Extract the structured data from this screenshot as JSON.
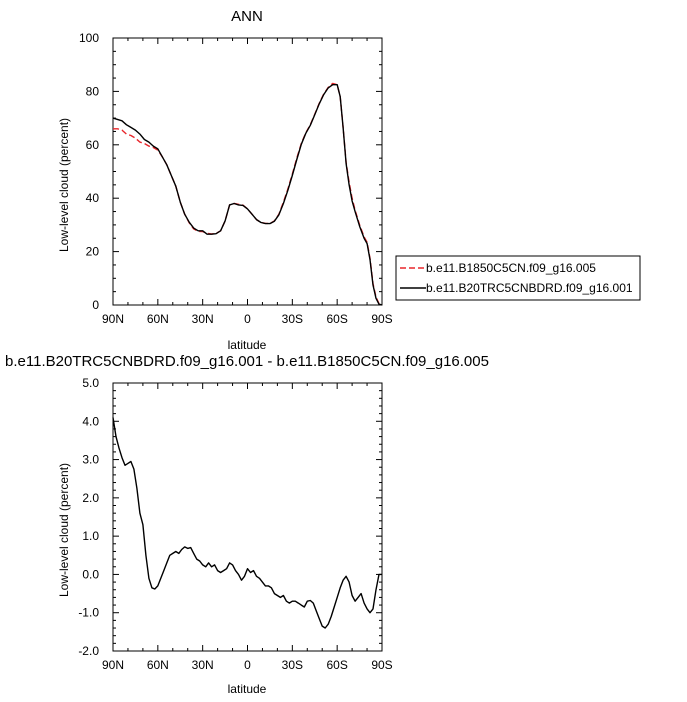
{
  "chart_data": [
    {
      "type": "line",
      "title": "ANN",
      "xlabel": "latitude",
      "ylabel": "Low-level cloud (percent)",
      "xlim": [
        90,
        -90
      ],
      "ylim": [
        0,
        100
      ],
      "x_ticks": [
        90,
        60,
        30,
        0,
        -30,
        -60,
        -90
      ],
      "x_tick_labels": [
        "90N",
        "60N",
        "30N",
        "0",
        "30S",
        "60S",
        "90S"
      ],
      "y_ticks": [
        0,
        20,
        40,
        60,
        80,
        100
      ],
      "y_tick_labels": [
        "0",
        "20",
        "40",
        "60",
        "80",
        "100"
      ],
      "legend_position": "right",
      "series": [
        {
          "name": "b.e11.B1850C5CN.f09_g16.005",
          "color": "#e8262b",
          "dash": "dashed",
          "x": [
            90,
            87,
            84,
            81,
            78,
            75,
            72,
            69,
            66,
            63,
            60,
            57,
            54,
            51,
            48,
            45,
            42,
            39,
            36,
            33,
            30,
            27,
            24,
            21,
            18,
            15,
            12,
            9,
            6,
            3,
            0,
            -3,
            -6,
            -9,
            -12,
            -15,
            -18,
            -21,
            -24,
            -27,
            -30,
            -33,
            -36,
            -39,
            -42,
            -45,
            -48,
            -51,
            -54,
            -57,
            -60,
            -62,
            -64,
            -66,
            -68,
            -70,
            -72,
            -75,
            -78,
            -80,
            -82,
            -84,
            -86,
            -88,
            -90
          ],
          "y": [
            66,
            66,
            65.5,
            64,
            63.5,
            62.5,
            61,
            60.5,
            59.5,
            59,
            58,
            55.5,
            52.5,
            48.5,
            44.5,
            38.5,
            34,
            30.8,
            28.5,
            27.6,
            27.5,
            26.8,
            26.6,
            26.8,
            27.8,
            31.5,
            37.5,
            38,
            37.7,
            37.4,
            36,
            34,
            32,
            30.9,
            30.6,
            30.5,
            31.5,
            34,
            38.5,
            43.5,
            49,
            55,
            60.5,
            64.5,
            67.5,
            71.5,
            75.5,
            79,
            81.5,
            83,
            82.5,
            78,
            66.5,
            53.5,
            46,
            40,
            35.5,
            30,
            25.5,
            23.5,
            17.5,
            8,
            3,
            0.5,
            0
          ]
        },
        {
          "name": "b.e11.B20TRC5CNBDRD.f09_g16.001",
          "color": "#000000",
          "dash": "solid",
          "x": [
            90,
            87,
            84,
            81,
            78,
            75,
            72,
            69,
            66,
            63,
            60,
            57,
            54,
            51,
            48,
            45,
            42,
            39,
            36,
            33,
            30,
            27,
            24,
            21,
            18,
            15,
            12,
            9,
            6,
            3,
            0,
            -3,
            -6,
            -9,
            -12,
            -15,
            -18,
            -21,
            -24,
            -27,
            -30,
            -33,
            -36,
            -39,
            -42,
            -45,
            -48,
            -51,
            -54,
            -57,
            -60,
            -62,
            -64,
            -66,
            -68,
            -70,
            -72,
            -75,
            -78,
            -80,
            -82,
            -84,
            -86,
            -88,
            -90
          ],
          "y": [
            70,
            69.5,
            69,
            67.5,
            66.5,
            65.5,
            64,
            62,
            61,
            59.5,
            58.5,
            55.5,
            52.5,
            48.5,
            44.5,
            38.5,
            34,
            31,
            28.8,
            27.8,
            27.8,
            26.5,
            26.5,
            26.7,
            27.8,
            31.5,
            37.5,
            38,
            37.5,
            37.3,
            36,
            34,
            32,
            30.9,
            30.5,
            30.5,
            31.4,
            33.8,
            38,
            43,
            48.5,
            54.5,
            60.2,
            64.3,
            67.3,
            71.3,
            75.3,
            78.8,
            81.3,
            82.5,
            82.5,
            78,
            66.5,
            53,
            45,
            39,
            35,
            29.5,
            25,
            23,
            17,
            7.5,
            2.5,
            0.3,
            0
          ]
        }
      ]
    },
    {
      "type": "line",
      "title": "b.e11.B20TRC5CNBDRD.f09_g16.001 - b.e11.B1850C5CN.f09_g16.005",
      "xlabel": "latitude",
      "ylabel": "Low-level cloud (percent)",
      "xlim": [
        90,
        -90
      ],
      "ylim": [
        -2.0,
        5.0
      ],
      "x_ticks": [
        90,
        60,
        30,
        0,
        -30,
        -60,
        -90
      ],
      "x_tick_labels": [
        "90N",
        "60N",
        "30N",
        "0",
        "30S",
        "60S",
        "90S"
      ],
      "y_ticks": [
        -2,
        -1,
        0,
        1,
        2,
        3,
        4,
        5
      ],
      "y_tick_labels": [
        "-2.0",
        "-1.0",
        "0.0",
        "1.0",
        "2.0",
        "3.0",
        "4.0",
        "5.0"
      ],
      "series": [
        {
          "color": "#000000",
          "dash": "solid",
          "x": [
            90,
            88,
            86,
            84,
            82,
            80,
            78,
            76,
            74,
            72,
            70,
            68,
            66,
            64,
            62,
            60,
            58,
            56,
            54,
            52,
            50,
            48,
            46,
            44,
            42,
            40,
            38,
            36,
            34,
            32,
            30,
            28,
            26,
            24,
            22,
            20,
            18,
            16,
            14,
            12,
            10,
            8,
            6,
            4,
            2,
            0,
            -2,
            -4,
            -6,
            -8,
            -10,
            -12,
            -14,
            -16,
            -18,
            -20,
            -22,
            -24,
            -26,
            -28,
            -30,
            -32,
            -34,
            -36,
            -38,
            -40,
            -42,
            -44,
            -46,
            -48,
            -50,
            -52,
            -54,
            -56,
            -58,
            -60,
            -62,
            -64,
            -66,
            -68,
            -70,
            -72,
            -74,
            -76,
            -78,
            -80,
            -82,
            -84,
            -86,
            -88,
            -90
          ],
          "y": [
            4.1,
            3.6,
            3.3,
            3.05,
            2.85,
            2.9,
            2.95,
            2.75,
            2.25,
            1.6,
            1.3,
            0.5,
            -0.1,
            -0.35,
            -0.38,
            -0.3,
            -0.1,
            0.1,
            0.3,
            0.5,
            0.55,
            0.6,
            0.55,
            0.65,
            0.72,
            0.68,
            0.7,
            0.55,
            0.4,
            0.35,
            0.25,
            0.2,
            0.3,
            0.2,
            0.25,
            0.1,
            0.05,
            0.1,
            0.15,
            0.3,
            0.25,
            0.1,
            0.0,
            -0.15,
            -0.05,
            0.15,
            0.05,
            0.1,
            -0.05,
            -0.1,
            -0.2,
            -0.3,
            -0.3,
            -0.35,
            -0.5,
            -0.55,
            -0.6,
            -0.55,
            -0.7,
            -0.75,
            -0.7,
            -0.7,
            -0.75,
            -0.8,
            -0.85,
            -0.7,
            -0.68,
            -0.75,
            -0.95,
            -1.15,
            -1.35,
            -1.4,
            -1.3,
            -1.1,
            -0.85,
            -0.6,
            -0.35,
            -0.15,
            -0.05,
            -0.2,
            -0.55,
            -0.7,
            -0.6,
            -0.5,
            -0.75,
            -0.9,
            -1.0,
            -0.9,
            -0.4,
            0.0,
            0.0
          ]
        }
      ]
    }
  ]
}
